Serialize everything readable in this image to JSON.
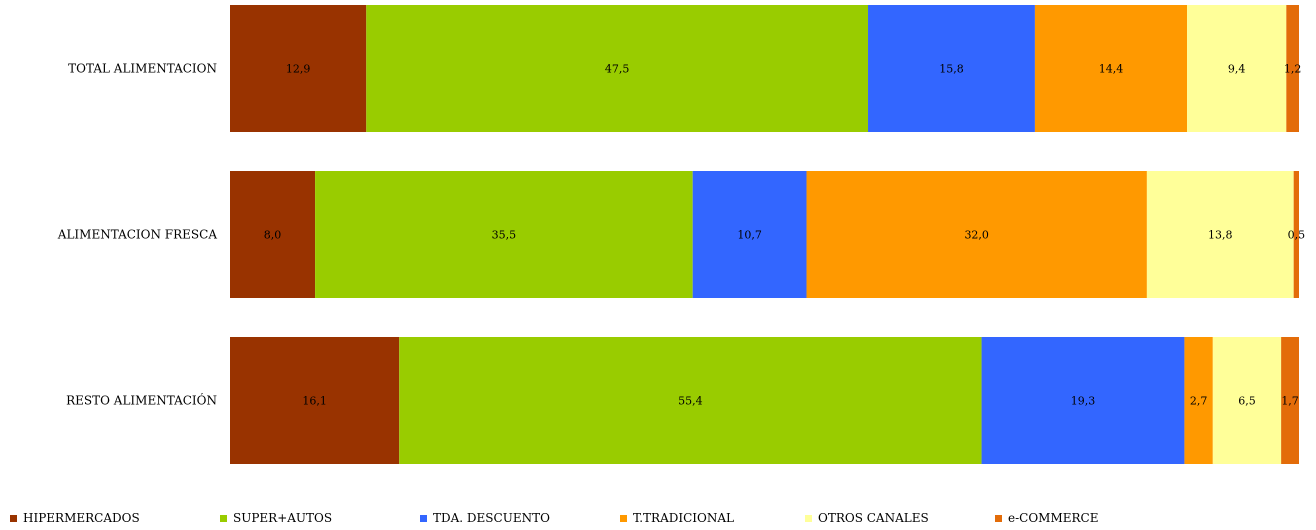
{
  "chart_data": {
    "type": "bar",
    "orientation": "horizontal",
    "stacked": "percent",
    "categories": [
      "TOTAL ALIMENTACION",
      "ALIMENTACION FRESCA",
      "RESTO ALIMENTACIÓN"
    ],
    "series": [
      {
        "name": "HIPERMERCADOS",
        "color": "#993300",
        "values": [
          12.9,
          8.0,
          16.1
        ],
        "labels": [
          "12,9",
          "8,0",
          "16,1"
        ]
      },
      {
        "name": "SUPER+AUTOS",
        "color": "#99cc00",
        "values": [
          47.5,
          35.5,
          55.4
        ],
        "labels": [
          "47,5",
          "35,5",
          "55,4"
        ]
      },
      {
        "name": "TDA. DESCUENTO",
        "color": "#3366ff",
        "values": [
          15.8,
          10.7,
          19.3
        ],
        "labels": [
          "15,8",
          "10,7",
          "19,3"
        ]
      },
      {
        "name": "T.TRADICIONAL",
        "color": "#ff9900",
        "values": [
          14.4,
          32.0,
          2.7
        ],
        "labels": [
          "14,4",
          "32,0",
          "2,7"
        ]
      },
      {
        "name": "OTROS CANALES",
        "color": "#ffff99",
        "values": [
          9.4,
          13.8,
          6.5
        ],
        "labels": [
          "9,4",
          "13,8",
          "6,5"
        ]
      },
      {
        "name": "e-COMMERCE",
        "color": "#e36c09",
        "values": [
          1.2,
          0.5,
          1.7
        ],
        "labels": [
          "1,2",
          "0,5",
          "1,7"
        ]
      }
    ],
    "legend_position": "bottom",
    "grid": false
  }
}
